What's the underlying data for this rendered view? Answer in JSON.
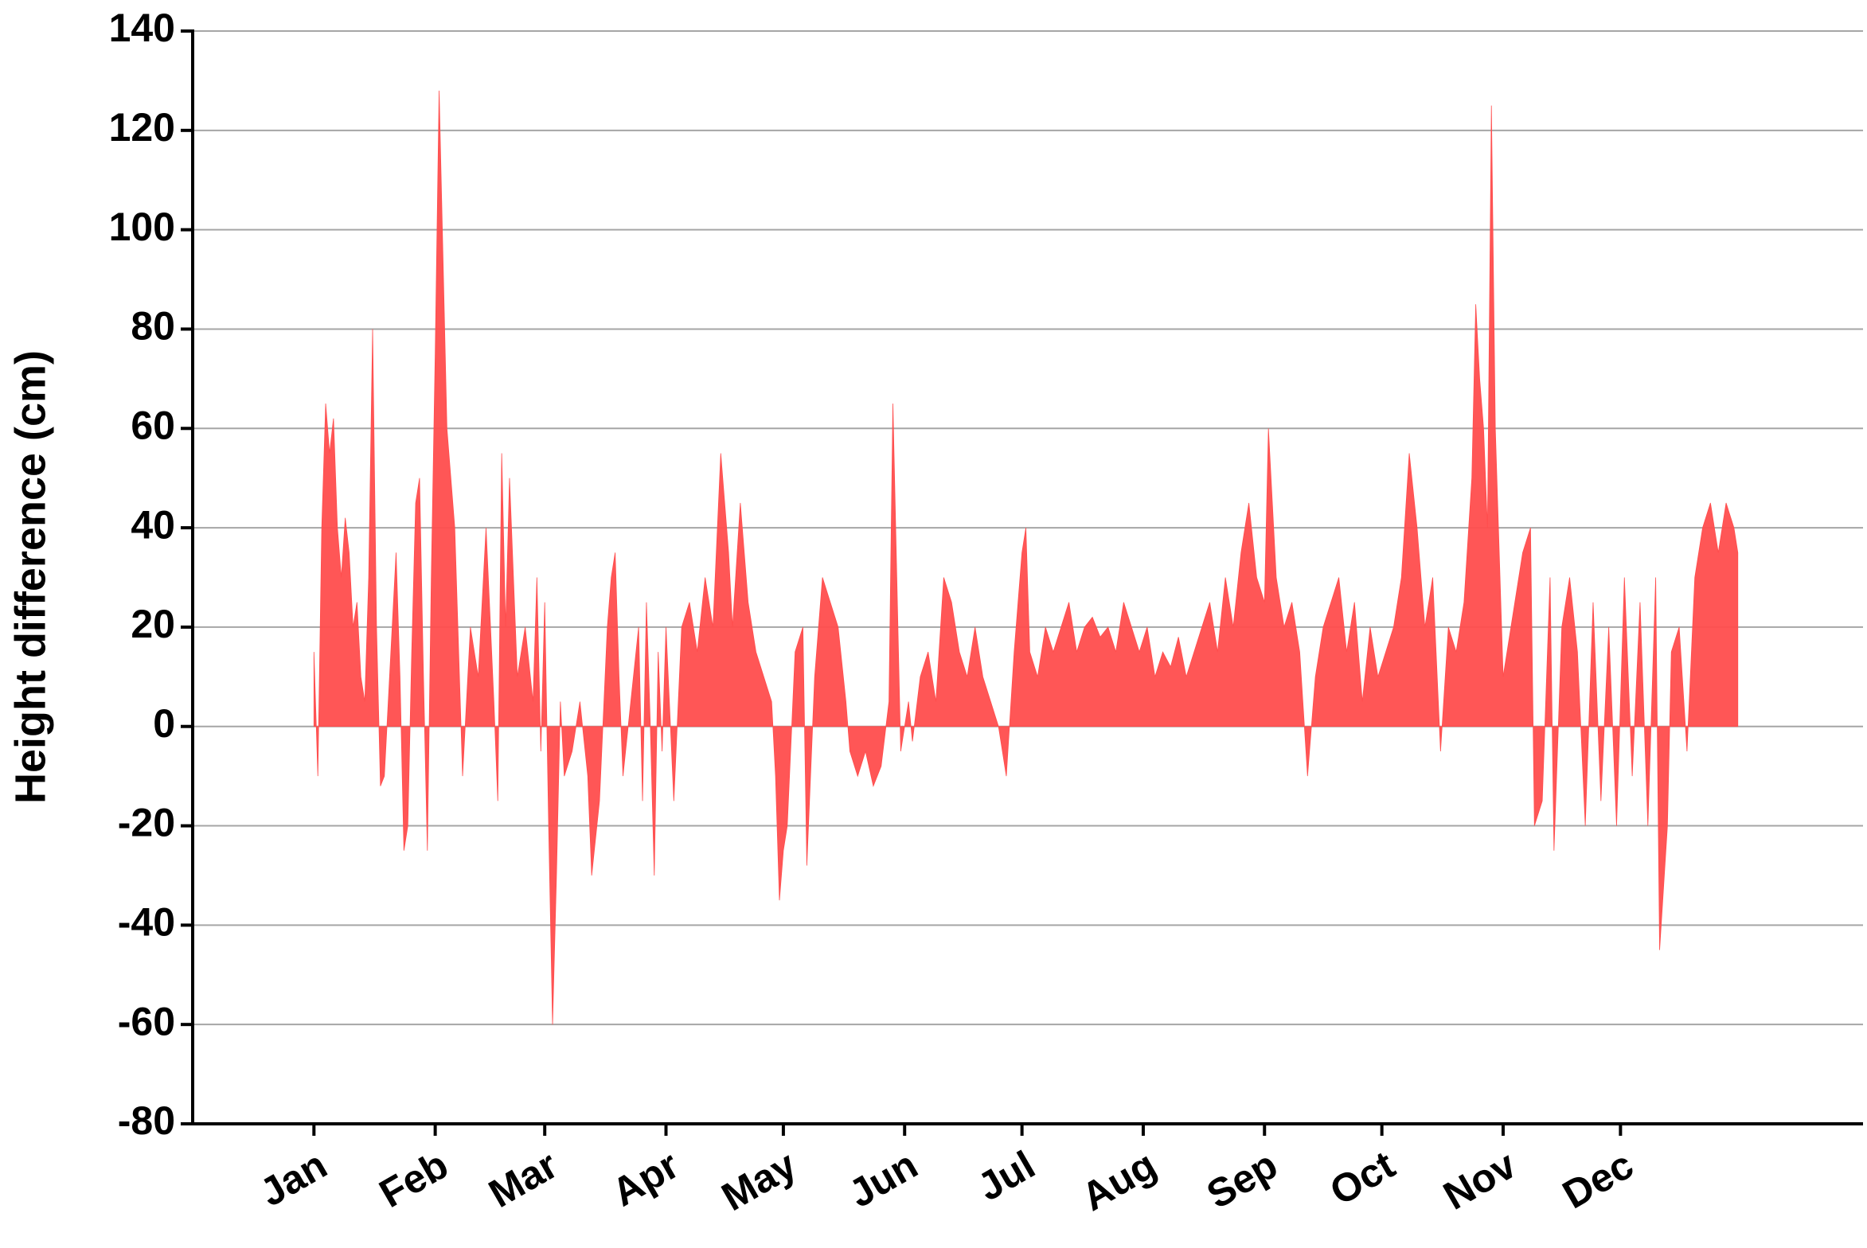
{
  "chart_data": {
    "type": "area",
    "y_label": "Height difference (cm)",
    "color": "#ff4d4d",
    "grid": true,
    "xlim": [
      -30,
      397
    ],
    "ylim": [
      -80,
      140
    ],
    "yticks": [
      -80,
      -60,
      -40,
      -20,
      0,
      20,
      40,
      60,
      80,
      100,
      120,
      140
    ],
    "xticks": [
      {
        "value": 1,
        "label": "Jan"
      },
      {
        "value": 32,
        "label": "Feb"
      },
      {
        "value": 60,
        "label": "Mar"
      },
      {
        "value": 91,
        "label": "Apr"
      },
      {
        "value": 121,
        "label": "May"
      },
      {
        "value": 152,
        "label": "Jun"
      },
      {
        "value": 182,
        "label": "Jul"
      },
      {
        "value": 213,
        "label": "Aug"
      },
      {
        "value": 244,
        "label": "Sep"
      },
      {
        "value": 274,
        "label": "Oct"
      },
      {
        "value": 305,
        "label": "Nov"
      },
      {
        "value": 335,
        "label": "Dec"
      }
    ],
    "x": [
      1,
      2,
      3,
      4,
      5,
      6,
      7,
      8,
      9,
      10,
      11,
      12,
      13,
      14,
      15,
      16,
      17,
      18,
      19,
      20,
      21,
      22,
      23,
      24,
      25,
      26,
      27,
      28,
      29,
      30,
      31,
      32,
      33,
      35,
      37,
      39,
      41,
      43,
      45,
      47,
      48,
      49,
      50,
      51,
      53,
      55,
      57,
      58,
      59,
      60,
      61,
      62,
      63,
      64,
      65,
      67,
      69,
      71,
      72,
      74,
      76,
      77,
      78,
      79,
      80,
      82,
      84,
      85,
      86,
      87,
      88,
      89,
      90,
      91,
      93,
      95,
      97,
      99,
      101,
      103,
      105,
      107,
      108,
      110,
      112,
      114,
      116,
      118,
      119,
      120,
      121,
      122,
      124,
      126,
      127,
      129,
      131,
      133,
      135,
      137,
      138,
      140,
      142,
      144,
      146,
      148,
      149,
      150,
      151,
      153,
      154,
      156,
      158,
      160,
      162,
      164,
      166,
      168,
      170,
      172,
      174,
      176,
      178,
      180,
      181,
      182,
      183,
      184,
      186,
      188,
      190,
      192,
      194,
      196,
      198,
      200,
      202,
      204,
      206,
      208,
      210,
      212,
      214,
      216,
      218,
      220,
      222,
      224,
      226,
      228,
      230,
      232,
      234,
      236,
      238,
      240,
      242,
      244,
      245,
      247,
      249,
      251,
      253,
      255,
      257,
      259,
      261,
      263,
      265,
      267,
      269,
      271,
      273,
      275,
      277,
      279,
      281,
      283,
      285,
      287,
      289,
      291,
      293,
      295,
      297,
      298,
      299,
      300,
      301,
      302,
      303,
      305,
      306,
      308,
      310,
      312,
      313,
      315,
      317,
      318,
      320,
      322,
      324,
      326,
      328,
      330,
      332,
      334,
      336,
      338,
      340,
      342,
      344,
      345,
      347,
      348,
      350,
      352,
      354,
      356,
      358,
      360,
      362,
      364,
      365
    ],
    "values": [
      15,
      -10,
      40,
      65,
      55,
      62,
      40,
      30,
      42,
      35,
      20,
      25,
      10,
      5,
      30,
      80,
      20,
      -12,
      -10,
      5,
      20,
      35,
      10,
      -25,
      -20,
      15,
      45,
      50,
      10,
      -25,
      30,
      75,
      128,
      60,
      40,
      -10,
      20,
      10,
      40,
      5,
      -15,
      55,
      20,
      50,
      10,
      20,
      5,
      30,
      -5,
      25,
      -20,
      -60,
      -30,
      5,
      -10,
      -5,
      5,
      -10,
      -30,
      -15,
      20,
      30,
      35,
      10,
      -10,
      5,
      20,
      -15,
      25,
      0,
      -30,
      15,
      -5,
      20,
      -15,
      20,
      25,
      15,
      30,
      20,
      55,
      35,
      20,
      45,
      25,
      15,
      10,
      5,
      -10,
      -35,
      -25,
      -20,
      15,
      20,
      -28,
      10,
      30,
      25,
      20,
      5,
      -5,
      -10,
      -5,
      -12,
      -8,
      5,
      65,
      30,
      -5,
      5,
      -3,
      10,
      15,
      5,
      30,
      25,
      15,
      10,
      20,
      10,
      5,
      0,
      -10,
      15,
      25,
      35,
      40,
      15,
      10,
      20,
      15,
      20,
      25,
      15,
      20,
      22,
      18,
      20,
      15,
      25,
      20,
      15,
      20,
      10,
      15,
      12,
      18,
      10,
      15,
      20,
      25,
      15,
      30,
      20,
      35,
      45,
      30,
      25,
      60,
      30,
      20,
      25,
      15,
      -10,
      10,
      20,
      25,
      30,
      15,
      25,
      5,
      20,
      10,
      15,
      20,
      30,
      55,
      40,
      20,
      30,
      -5,
      20,
      15,
      25,
      50,
      85,
      70,
      60,
      40,
      125,
      60,
      10,
      15,
      25,
      35,
      40,
      -20,
      -15,
      30,
      -25,
      20,
      30,
      15,
      -20,
      25,
      -15,
      20,
      -20,
      30,
      -10,
      25,
      -20,
      30,
      -45,
      -20,
      15,
      20,
      -5,
      30,
      40,
      45,
      35,
      45,
      40,
      35
    ]
  }
}
